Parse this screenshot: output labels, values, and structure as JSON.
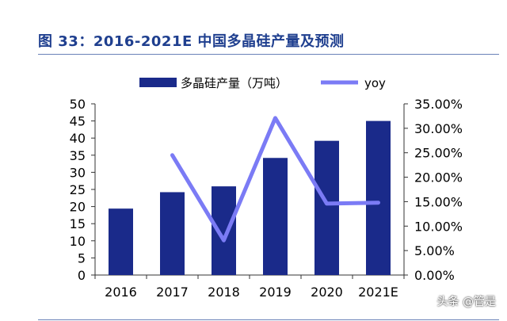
{
  "title": "图 33：2016-2021E 中国多晶硅产量及预测",
  "watermark": "头条 @管是",
  "colors": {
    "bar": "#1a2a8a",
    "line": "#7b7bf5",
    "title": "#1f3f8f",
    "axis": "#333333"
  },
  "chart_data": {
    "type": "bar+line",
    "categories": [
      "2016",
      "2017",
      "2018",
      "2019",
      "2020",
      "2021E"
    ],
    "series": [
      {
        "name": "多晶硅产量（万吨）",
        "type": "bar",
        "axis": "left",
        "values": [
          19.4,
          24.2,
          25.9,
          34.2,
          39.2,
          45.0
        ]
      },
      {
        "name": "yoy",
        "type": "line",
        "axis": "right",
        "values": [
          null,
          0.245,
          0.071,
          0.321,
          0.146,
          0.148
        ]
      }
    ],
    "y_left": {
      "min": 0,
      "max": 50,
      "ticks": [
        "0",
        "5",
        "10",
        "15",
        "20",
        "25",
        "30",
        "35",
        "40",
        "45",
        "50"
      ]
    },
    "y_right": {
      "min": 0,
      "max": 0.35,
      "ticks": [
        "0.00%",
        "5.00%",
        "10.00%",
        "15.00%",
        "20.00%",
        "25.00%",
        "30.00%",
        "35.00%"
      ]
    },
    "legend_position": "top",
    "grid": false
  }
}
